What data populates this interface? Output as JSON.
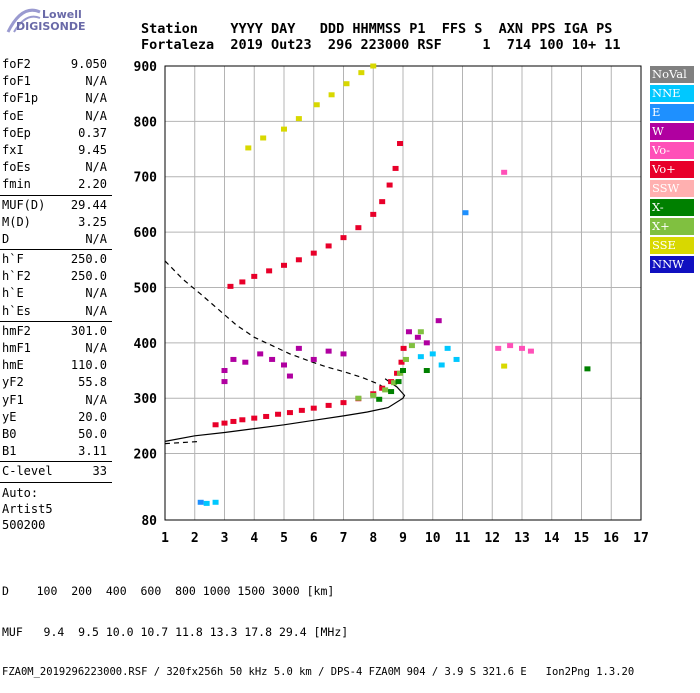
{
  "logo": {
    "line1": "Lowell",
    "line2": "DIGISONDE"
  },
  "header": {
    "row1": "Station    YYYY DAY   DDD HHMMSS P1  FFS S  AXN PPS IGA PS",
    "row2": "Fortaleza  2019 Out23  296 223000 RSF     1  714 100 10+ 11"
  },
  "params_group1": [
    {
      "label": "foF2",
      "value": "9.050"
    },
    {
      "label": "foF1",
      "value": "N/A"
    },
    {
      "label": "foF1p",
      "value": "N/A"
    },
    {
      "label": "foE",
      "value": "N/A"
    },
    {
      "label": "foEp",
      "value": "0.37"
    },
    {
      "label": "fxI",
      "value": "9.45"
    },
    {
      "label": "foEs",
      "value": "N/A"
    },
    {
      "label": "fmin",
      "value": "2.20"
    }
  ],
  "params_group2": [
    {
      "label": "MUF(D)",
      "value": "29.44"
    },
    {
      "label": "M(D)",
      "value": "3.25"
    },
    {
      "label": "D",
      "value": "N/A"
    }
  ],
  "params_group3": [
    {
      "label": "h`F",
      "value": "250.0"
    },
    {
      "label": "h`F2",
      "value": "250.0"
    },
    {
      "label": "h`E",
      "value": "N/A"
    },
    {
      "label": "h`Es",
      "value": "N/A"
    }
  ],
  "params_group4": [
    {
      "label": "hmF2",
      "value": "301.0"
    },
    {
      "label": "hmF1",
      "value": "N/A"
    },
    {
      "label": "hmE",
      "value": "110.0"
    },
    {
      "label": "yF2",
      "value": "55.8"
    },
    {
      "label": "yF1",
      "value": "N/A"
    },
    {
      "label": "yE",
      "value": "20.0"
    },
    {
      "label": "B0",
      "value": "50.0"
    },
    {
      "label": "B1",
      "value": "3.11"
    }
  ],
  "params_group5": [
    {
      "label": "C-level",
      "value": "33"
    }
  ],
  "auto": {
    "line1": "Auto:",
    "line2": "Artist5",
    "line3": "500200"
  },
  "legend": [
    {
      "label": "NoVal",
      "color": "#808080"
    },
    {
      "label": "NNE",
      "color": "#00c8ff"
    },
    {
      "label": "E",
      "color": "#1e90ff"
    },
    {
      "label": "W",
      "color": "#b000a0"
    },
    {
      "label": "Vo-",
      "color": "#ff50b8"
    },
    {
      "label": "Vo+",
      "color": "#e8002a"
    },
    {
      "label": "SSW",
      "color": "#ffb0b0"
    },
    {
      "label": "X-",
      "color": "#008000"
    },
    {
      "label": "X+",
      "color": "#80c040"
    },
    {
      "label": "SSE",
      "color": "#d8d800"
    },
    {
      "label": "NNW",
      "color": "#1010c0"
    }
  ],
  "footer": {
    "row1": "D    100  200  400  600  800 1000 1500 3000 [km]",
    "row2": "MUF   9.4  9.5 10.0 10.7 11.8 13.3 17.8 29.4 [MHz]",
    "row3": "FZA0M_2019296223000.RSF / 320fx256h 50 kHz 5.0 km / DPS-4 FZA0M 904 / 3.9 S 321.6 E   Ion2Png 1.3.20"
  },
  "chart_data": {
    "type": "scatter",
    "xlim": [
      1,
      17
    ],
    "ylim": [
      80,
      900
    ],
    "x_ticks": [
      1,
      2,
      3,
      4,
      5,
      6,
      7,
      8,
      9,
      10,
      11,
      12,
      13,
      14,
      15,
      16,
      17
    ],
    "y_ticks": [
      80,
      200,
      300,
      400,
      500,
      600,
      700,
      800,
      900
    ],
    "grid": true,
    "xlabel": "",
    "ylabel": "",
    "series": [
      {
        "name": "Vo+",
        "color": "#e8002a",
        "points": [
          [
            2.7,
            252
          ],
          [
            3.0,
            255
          ],
          [
            3.3,
            258
          ],
          [
            3.6,
            261
          ],
          [
            4.0,
            264
          ],
          [
            4.4,
            267
          ],
          [
            4.8,
            271
          ],
          [
            5.2,
            274
          ],
          [
            5.6,
            278
          ],
          [
            6.0,
            282
          ],
          [
            6.5,
            287
          ],
          [
            7.0,
            292
          ],
          [
            7.5,
            299
          ],
          [
            8.0,
            308
          ],
          [
            8.3,
            318
          ],
          [
            8.6,
            330
          ],
          [
            8.8,
            345
          ],
          [
            8.95,
            365
          ],
          [
            9.02,
            390
          ],
          [
            3.2,
            502
          ],
          [
            3.6,
            510
          ],
          [
            4.0,
            520
          ],
          [
            4.5,
            530
          ],
          [
            5.0,
            540
          ],
          [
            5.5,
            550
          ],
          [
            6.0,
            562
          ],
          [
            6.5,
            575
          ],
          [
            7.0,
            590
          ],
          [
            7.5,
            608
          ],
          [
            8.0,
            632
          ],
          [
            8.3,
            655
          ],
          [
            8.55,
            685
          ],
          [
            8.75,
            715
          ],
          [
            8.9,
            760
          ]
        ]
      },
      {
        "name": "W",
        "color": "#b000a0",
        "points": [
          [
            3.0,
            330
          ],
          [
            3.0,
            350
          ],
          [
            3.3,
            370
          ],
          [
            3.7,
            365
          ],
          [
            4.2,
            380
          ],
          [
            4.6,
            370
          ],
          [
            5.0,
            360
          ],
          [
            5.2,
            340
          ],
          [
            5.5,
            390
          ],
          [
            6.0,
            370
          ],
          [
            6.5,
            385
          ],
          [
            7.0,
            380
          ],
          [
            9.2,
            420
          ],
          [
            9.5,
            410
          ],
          [
            9.8,
            400
          ],
          [
            10.2,
            440
          ]
        ]
      },
      {
        "name": "X+",
        "color": "#80c040",
        "points": [
          [
            7.5,
            300
          ],
          [
            8.0,
            305
          ],
          [
            8.4,
            315
          ],
          [
            8.7,
            328
          ],
          [
            8.9,
            345
          ],
          [
            9.1,
            370
          ],
          [
            9.3,
            395
          ],
          [
            9.6,
            420
          ]
        ]
      },
      {
        "name": "X-",
        "color": "#008000",
        "points": [
          [
            8.2,
            298
          ],
          [
            8.6,
            312
          ],
          [
            8.85,
            330
          ],
          [
            9.0,
            350
          ],
          [
            9.8,
            350
          ],
          [
            15.2,
            353
          ]
        ]
      },
      {
        "name": "NNE",
        "color": "#00c8ff",
        "points": [
          [
            9.6,
            375
          ],
          [
            10.0,
            380
          ],
          [
            10.3,
            360
          ],
          [
            10.5,
            390
          ],
          [
            10.8,
            370
          ],
          [
            2.4,
            110
          ],
          [
            2.7,
            112
          ]
        ]
      },
      {
        "name": "SSE",
        "color": "#d8d800",
        "points": [
          [
            3.8,
            752
          ],
          [
            4.3,
            770
          ],
          [
            5.0,
            786
          ],
          [
            5.5,
            805
          ],
          [
            6.1,
            830
          ],
          [
            6.6,
            848
          ],
          [
            7.1,
            868
          ],
          [
            7.6,
            888
          ],
          [
            8.0,
            900
          ],
          [
            12.4,
            358
          ]
        ]
      },
      {
        "name": "Vo-",
        "color": "#ff50b8",
        "points": [
          [
            12.2,
            390
          ],
          [
            12.6,
            395
          ],
          [
            13.0,
            390
          ],
          [
            13.3,
            385
          ],
          [
            12.4,
            708
          ]
        ]
      },
      {
        "name": "E",
        "color": "#1e90ff",
        "points": [
          [
            11.1,
            635
          ],
          [
            2.2,
            112
          ]
        ]
      }
    ],
    "curves": [
      {
        "name": "profile",
        "style": "solid",
        "x": [
          1.0,
          2.0,
          3.0,
          4.0,
          5.0,
          6.0,
          7.0,
          7.8,
          8.5,
          9.0,
          9.05,
          8.8,
          8.4
        ],
        "y": [
          222,
          232,
          238,
          245,
          252,
          260,
          268,
          275,
          283,
          300,
          305,
          320,
          335
        ]
      },
      {
        "name": "profile-topside",
        "style": "dashed",
        "x": [
          1.0,
          1.6,
          2.2,
          2.8,
          3.4,
          4.0,
          4.6,
          5.2,
          5.8,
          6.4,
          7.0,
          7.6,
          8.2,
          8.6
        ],
        "y": [
          548,
          515,
          488,
          460,
          432,
          410,
          395,
          380,
          368,
          357,
          348,
          338,
          325,
          310
        ]
      },
      {
        "name": "profile-bottom",
        "style": "dashed",
        "x": [
          1.0,
          1.6,
          2.2
        ],
        "y": [
          218,
          220,
          222
        ]
      }
    ]
  }
}
